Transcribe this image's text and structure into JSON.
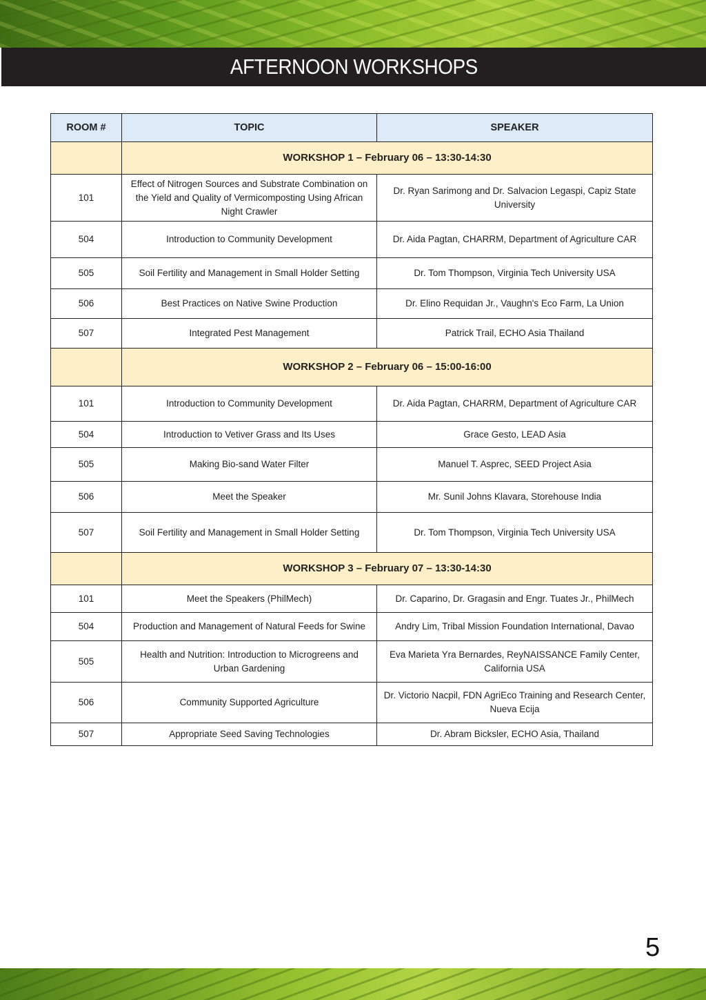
{
  "header": {
    "title": "AFTERNOON WORKSHOPS"
  },
  "table": {
    "columns": [
      "ROOM #",
      "TOPIC",
      "SPEAKER"
    ],
    "workshops": [
      {
        "title": "WORKSHOP 1 – February 06 – 13:30-14:30",
        "rows": [
          {
            "room": "101",
            "topic": "Effect of Nitrogen Sources and Substrate Combination on the Yield and Quality of Vermicomposting Using African Night Crawler",
            "speaker": "Dr. Ryan Sarimong and Dr. Salvacion Legaspi, Capiz State University"
          },
          {
            "room": "504",
            "topic": "Introduction to Community Development",
            "speaker": "Dr. Aida Pagtan, CHARRM, Department of Agriculture CAR"
          },
          {
            "room": "505",
            "topic": "Soil Fertility and Management in Small Holder Setting",
            "speaker": "Dr. Tom Thompson, Virginia Tech University USA"
          },
          {
            "room": "506",
            "topic": "Best Practices on Native Swine Production",
            "speaker": "Dr. Elino Requidan Jr., Vaughn's Eco Farm, La Union"
          },
          {
            "room": "507",
            "topic": "Integrated Pest Management",
            "speaker": "Patrick Trail, ECHO Asia Thailand"
          }
        ]
      },
      {
        "title": "WORKSHOP 2 – February 06 – 15:00-16:00",
        "rows": [
          {
            "room": "101",
            "topic": "Introduction to Community Development",
            "speaker": "Dr. Aida Pagtan, CHARRM, Department of Agriculture CAR"
          },
          {
            "room": "504",
            "topic": "Introduction to Vetiver Grass and Its Uses",
            "speaker": "Grace Gesto, LEAD Asia"
          },
          {
            "room": "505",
            "topic": "Making Bio-sand Water Filter",
            "speaker": "Manuel T. Asprec, SEED Project Asia"
          },
          {
            "room": "506",
            "topic": "Meet the Speaker",
            "speaker": "Mr. Sunil Johns Klavara, Storehouse India"
          },
          {
            "room": "507",
            "topic": "Soil Fertility and Management in Small Holder Setting",
            "speaker": "Dr. Tom Thompson, Virginia Tech University USA"
          }
        ]
      },
      {
        "title": "WORKSHOP 3 – February 07 – 13:30-14:30",
        "rows": [
          {
            "room": "101",
            "topic": "Meet the Speakers (PhilMech)",
            "speaker": "Dr. Caparino, Dr. Gragasin and Engr. Tuates Jr., PhilMech"
          },
          {
            "room": "504",
            "topic": "Production and Management of Natural Feeds for Swine",
            "speaker": "Andry Lim, Tribal Mission Foundation International, Davao"
          },
          {
            "room": "505",
            "topic": "Health and Nutrition: Introduction to Microgreens and Urban Gardening",
            "speaker": "Eva Marieta Yra Bernardes, ReyNAISSANCE Family Center, California USA"
          },
          {
            "room": "506",
            "topic": "Community Supported Agriculture",
            "speaker": "Dr. Victorio Nacpil, FDN AgriEco Training and Research Center, Nueva Ecija"
          },
          {
            "room": "507",
            "topic": "Appropriate Seed Saving Technologies",
            "speaker": "Dr. Abram Bicksler, ECHO Asia, Thailand"
          }
        ]
      }
    ]
  },
  "footer": {
    "page_number": "5"
  }
}
